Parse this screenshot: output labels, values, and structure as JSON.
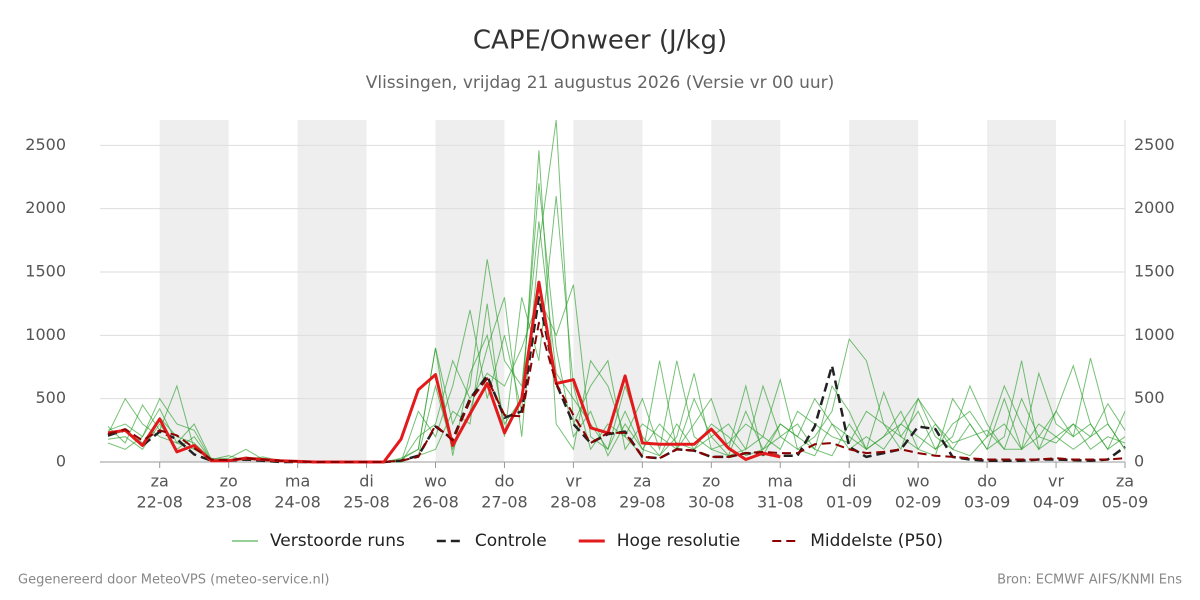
{
  "chart_data": {
    "type": "line",
    "title": "CAPE/Onweer (J/kg)",
    "subtitle": "Vlissingen, vrijdag 21 augustus 2026 (Versie vr 00 uur)",
    "footer_left": "Gegenereerd door MeteoVPS (meteo-service.nl)",
    "footer_right": "Bron: ECMWF AIFS/KNMI Ens",
    "categories": [
      null,
      null,
      null,
      "22-08",
      null,
      null,
      null,
      "23-08",
      null,
      null,
      null,
      "24-08",
      null,
      null,
      null,
      "25-08",
      null,
      null,
      null,
      "26-08",
      null,
      null,
      null,
      "27-08",
      null,
      null,
      null,
      "28-08",
      null,
      null,
      null,
      "29-08",
      null,
      null,
      null,
      "30-08",
      null,
      null,
      null,
      "31-08",
      null,
      null,
      null,
      "01-09",
      null,
      null,
      null,
      "02-09",
      null,
      null,
      null,
      "03-09",
      null,
      null,
      null,
      "04-09",
      null,
      null,
      null,
      "05-09"
    ],
    "weekday_labels": [
      null,
      null,
      null,
      "za",
      null,
      null,
      null,
      "zo",
      null,
      null,
      null,
      "ma",
      null,
      null,
      null,
      "di",
      null,
      null,
      null,
      "wo",
      null,
      null,
      null,
      "do",
      null,
      null,
      null,
      "vr",
      null,
      null,
      null,
      "za",
      null,
      null,
      null,
      "zo",
      null,
      null,
      null,
      "ma",
      null,
      null,
      null,
      "di",
      null,
      null,
      null,
      "wo",
      null,
      null,
      null,
      "do",
      null,
      null,
      null,
      "vr",
      null,
      null,
      null,
      "za"
    ],
    "ylim": [
      0,
      2700
    ],
    "yticks": [
      0,
      500,
      1000,
      1500,
      2000,
      2500
    ],
    "y2lim": [
      0,
      2700
    ],
    "y2ticks": [
      0,
      500,
      1000,
      1500,
      2000,
      2500
    ],
    "grid": true,
    "day_shading": true,
    "ensemble": {
      "name": "Verstoorde runs",
      "color": "#2ca02c",
      "runs": [
        [
          250,
          300,
          200,
          420,
          150,
          300,
          20,
          10,
          40,
          20,
          10,
          5,
          0,
          0,
          0,
          0,
          0,
          20,
          100,
          900,
          300,
          600,
          1600,
          800,
          600,
          1900,
          700,
          500,
          300,
          100,
          600,
          200,
          50,
          300,
          100,
          200,
          50,
          100,
          600,
          200,
          100,
          200,
          400,
          970,
          800,
          300,
          100,
          500,
          300,
          100,
          50,
          200,
          600,
          300,
          100,
          400,
          200,
          300,
          100,
          400
        ],
        [
          180,
          200,
          100,
          300,
          100,
          200,
          10,
          20,
          30,
          10,
          5,
          0,
          0,
          0,
          0,
          0,
          0,
          0,
          400,
          200,
          600,
          1200,
          500,
          1000,
          400,
          2460,
          300,
          100,
          800,
          600,
          200,
          50,
          800,
          100,
          300,
          500,
          100,
          600,
          50,
          300,
          200,
          100,
          50,
          300,
          100,
          200,
          400,
          100,
          50,
          500,
          300,
          100,
          200,
          800,
          100,
          200,
          300,
          100,
          200,
          150
        ],
        [
          280,
          150,
          450,
          250,
          600,
          100,
          30,
          10,
          20,
          40,
          10,
          0,
          0,
          0,
          0,
          0,
          0,
          10,
          50,
          600,
          100,
          400,
          900,
          1300,
          200,
          1700,
          2700,
          300,
          600,
          800,
          100,
          300,
          200,
          100,
          500,
          200,
          300,
          100,
          200,
          650,
          100,
          50,
          300,
          200,
          100,
          550,
          200,
          400,
          100,
          200,
          600,
          300,
          100,
          100,
          700,
          300,
          200,
          820,
          300,
          100
        ],
        [
          200,
          250,
          150,
          350,
          200,
          150,
          20,
          30,
          100,
          20,
          10,
          5,
          0,
          0,
          0,
          0,
          0,
          0,
          200,
          300,
          800,
          500,
          700,
          600,
          900,
          1300,
          1000,
          1400,
          200,
          100,
          400,
          100,
          50,
          200,
          700,
          100,
          150,
          300,
          200,
          100,
          400,
          300,
          200,
          150,
          400,
          300,
          200,
          100,
          300,
          150,
          200,
          250,
          100,
          500,
          200,
          150,
          300,
          200,
          460,
          250
        ],
        [
          150,
          100,
          200,
          500,
          300,
          250,
          10,
          10,
          20,
          10,
          5,
          0,
          0,
          0,
          0,
          0,
          0,
          0,
          50,
          100,
          400,
          300,
          1250,
          200,
          1300,
          800,
          2100,
          600,
          100,
          300,
          200,
          500,
          100,
          800,
          200,
          100,
          50,
          400,
          100,
          200,
          300,
          100,
          600,
          400,
          100,
          200,
          300,
          500,
          200,
          100,
          300,
          100,
          500,
          100,
          300,
          200,
          100,
          200,
          300,
          100
        ],
        [
          220,
          500,
          300,
          200,
          150,
          100,
          20,
          50,
          10,
          30,
          10,
          0,
          0,
          0,
          0,
          0,
          0,
          30,
          100,
          900,
          50,
          700,
          1000,
          300,
          500,
          2200,
          900,
          200,
          400,
          50,
          300,
          100,
          300,
          150,
          100,
          300,
          200,
          50,
          100,
          300,
          200,
          500,
          300,
          100,
          200,
          100,
          300,
          200,
          100,
          300,
          400,
          200,
          300,
          100,
          200,
          400,
          760,
          300,
          100,
          200
        ]
      ]
    },
    "series": [
      {
        "name": "Controle",
        "color": "#222222",
        "dash": true,
        "width": 2.5,
        "values": [
          210,
          250,
          130,
          240,
          180,
          60,
          10,
          10,
          20,
          10,
          0,
          0,
          0,
          0,
          0,
          0,
          0,
          10,
          50,
          280,
          180,
          500,
          680,
          350,
          400,
          1300,
          620,
          300,
          150,
          220,
          240,
          40,
          30,
          100,
          90,
          40,
          40,
          70,
          60,
          50,
          50,
          280,
          760,
          120,
          40,
          70,
          100,
          280,
          260,
          40,
          20,
          10,
          10,
          10,
          20,
          20,
          15,
          10,
          20,
          120
        ]
      },
      {
        "name": "Hoge resolutie",
        "color": "#e31a1c",
        "dash": false,
        "width": 3,
        "values": [
          230,
          250,
          130,
          340,
          80,
          130,
          10,
          10,
          30,
          20,
          10,
          5,
          0,
          0,
          0,
          0,
          0,
          180,
          570,
          690,
          130,
          380,
          620,
          230,
          500,
          1420,
          620,
          650,
          270,
          230,
          680,
          150,
          140,
          140,
          140,
          260,
          110,
          20,
          70,
          40,
          null,
          null,
          null,
          null,
          null,
          null,
          null,
          null,
          null,
          null,
          null,
          null,
          null,
          null,
          null,
          null,
          null,
          null,
          null,
          null
        ]
      },
      {
        "name": "Middelste (P50)",
        "color": "#8b0000",
        "dash": true,
        "width": 2,
        "values": [
          220,
          260,
          170,
          250,
          210,
          110,
          20,
          15,
          30,
          20,
          10,
          5,
          0,
          0,
          0,
          0,
          0,
          10,
          40,
          290,
          170,
          480,
          660,
          370,
          360,
          1100,
          620,
          370,
          150,
          230,
          230,
          40,
          30,
          100,
          90,
          40,
          40,
          70,
          80,
          70,
          70,
          140,
          150,
          100,
          70,
          80,
          100,
          70,
          50,
          40,
          30,
          20,
          20,
          20,
          20,
          30,
          20,
          20,
          20,
          30
        ]
      }
    ]
  }
}
